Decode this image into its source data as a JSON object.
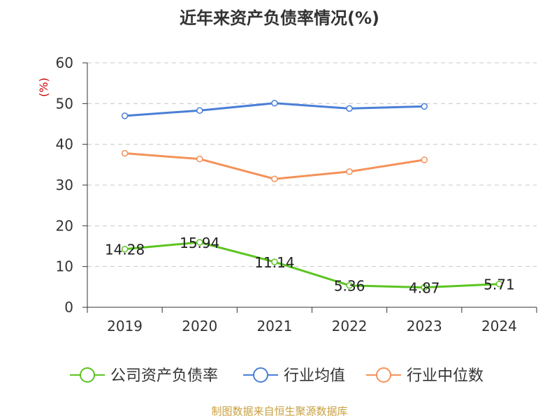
{
  "chart_data": {
    "type": "line",
    "title": "近年来资产负债率情况(%)",
    "ylabel": "(%)",
    "xlabel": "",
    "categories": [
      "2019",
      "2020",
      "2021",
      "2022",
      "2023",
      "2024"
    ],
    "ylim": [
      0,
      60
    ],
    "yticks": [
      0,
      10,
      20,
      30,
      40,
      50,
      60
    ],
    "grid": true,
    "legend_position": "bottom",
    "series": [
      {
        "name": "公司资产负债率",
        "color": "#5cc421",
        "values": [
          14.28,
          15.94,
          11.14,
          5.36,
          4.87,
          5.71
        ],
        "labels": [
          "14.28",
          "15.94",
          "11.14",
          "5.36",
          "4.87",
          "5.71"
        ]
      },
      {
        "name": "行业均值",
        "color": "#4a7fd6",
        "values": [
          47.0,
          48.3,
          50.1,
          48.8,
          49.3,
          null
        ]
      },
      {
        "name": "行业中位数",
        "color": "#f4925a",
        "values": [
          37.8,
          36.4,
          31.5,
          33.3,
          36.2,
          null
        ]
      }
    ]
  },
  "source": "制图数据来自恒生聚源数据库"
}
